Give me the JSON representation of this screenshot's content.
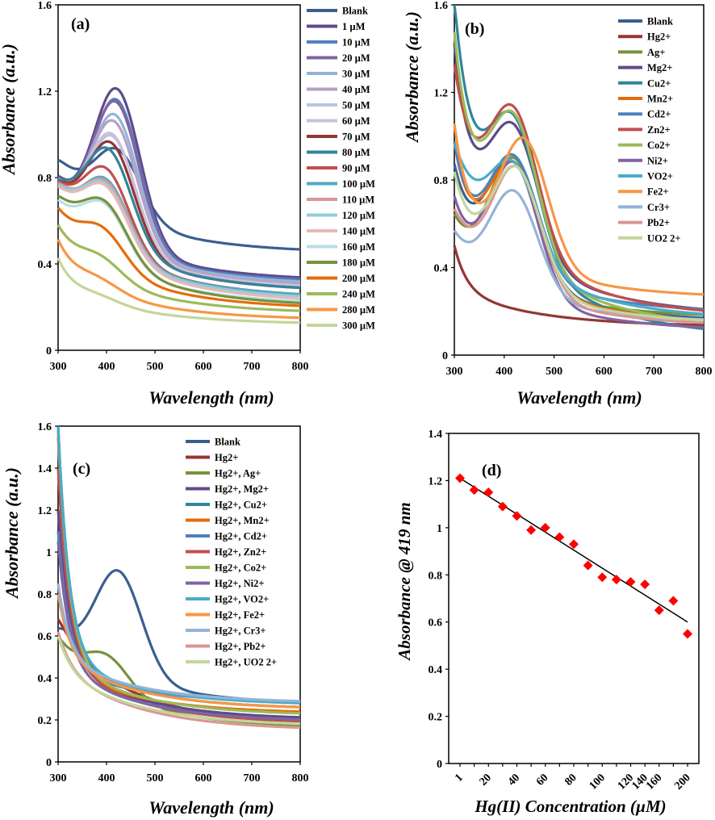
{
  "figure": "Four-panel absorbance figure",
  "palette": [
    "#3a5f8f",
    "#943634",
    "#76923c",
    "#5f4a8b",
    "#31859c",
    "#e46c0a",
    "#4f81bd",
    "#c0504d",
    "#9bbb59",
    "#8064a2",
    "#4bacc6",
    "#f79646",
    "#95b3d7",
    "#d99694",
    "#c3d69b",
    "#b3a2c7",
    "#93cddd",
    "#fabf8f",
    "#b7c7e0",
    "#e6b9b8",
    "#d7e4bd",
    "#ccc0da",
    "#b7dee8"
  ],
  "chart_data": [
    {
      "id": "a",
      "type": "line",
      "panel_label": "(a)",
      "xlabel": "Wavelength (nm)",
      "ylabel": "Absorbance (a.u.)",
      "xlim": [
        300,
        800
      ],
      "ylim": [
        0,
        1.6
      ],
      "xticks": [
        300,
        400,
        500,
        600,
        700,
        800
      ],
      "yticks": [
        0,
        0.4,
        0.8,
        1.2,
        1.6
      ],
      "ytick_labels": [
        "0",
        "0.4",
        "0.8",
        "1.2",
        "1.6"
      ],
      "series": [
        {
          "name": "Blank",
          "base": 0.87,
          "peak": 0.93,
          "dip": 0.84,
          "tail": 0.45,
          "center": 423
        },
        {
          "name": "1 µM",
          "base": 0.78,
          "peak": 1.21,
          "dip": 0.72,
          "tail": 0.32,
          "center": 422
        },
        {
          "name": "10 µM",
          "base": 0.77,
          "peak": 1.16,
          "dip": 0.71,
          "tail": 0.31,
          "center": 421
        },
        {
          "name": "20 µM",
          "base": 0.77,
          "peak": 1.15,
          "dip": 0.72,
          "tail": 0.3,
          "center": 420
        },
        {
          "name": "30 µM",
          "base": 0.76,
          "peak": 1.09,
          "dip": 0.72,
          "tail": 0.3,
          "center": 418
        },
        {
          "name": "40 µM",
          "base": 0.76,
          "peak": 1.06,
          "dip": 0.72,
          "tail": 0.29,
          "center": 416
        },
        {
          "name": "50 µM",
          "base": 0.75,
          "peak": 0.99,
          "dip": 0.71,
          "tail": 0.28,
          "center": 413
        },
        {
          "name": "60 µM",
          "base": 0.76,
          "peak": 1.0,
          "dip": 0.72,
          "tail": 0.28,
          "center": 412
        },
        {
          "name": "70 µM",
          "base": 0.75,
          "peak": 0.96,
          "dip": 0.71,
          "tail": 0.27,
          "center": 410
        },
        {
          "name": "80 µM",
          "base": 0.75,
          "peak": 0.93,
          "dip": 0.72,
          "tail": 0.27,
          "center": 405
        },
        {
          "name": "90 µM",
          "base": 0.74,
          "peak": 0.84,
          "dip": 0.69,
          "tail": 0.24,
          "center": 400
        },
        {
          "name": "100 µM",
          "base": 0.73,
          "peak": 0.79,
          "dip": 0.68,
          "tail": 0.24,
          "center": 400
        },
        {
          "name": "110 µM",
          "base": 0.74,
          "peak": 0.78,
          "dip": 0.69,
          "tail": 0.23,
          "center": 400
        },
        {
          "name": "120 µM",
          "base": 0.73,
          "peak": 0.77,
          "dip": 0.68,
          "tail": 0.23,
          "center": 398
        },
        {
          "name": "140 µM",
          "base": 0.72,
          "peak": 0.76,
          "dip": 0.67,
          "tail": 0.22,
          "center": 398
        },
        {
          "name": "160 µM",
          "base": 0.66,
          "peak": 0.68,
          "dip": 0.6,
          "tail": 0.21,
          "center": 395
        },
        {
          "name": "180 µM",
          "base": 0.68,
          "peak": 0.69,
          "dip": 0.63,
          "tail": 0.2,
          "center": 396
        },
        {
          "name": "200 µM",
          "base": 0.63,
          "peak": 0.57,
          "dip": 0.55,
          "tail": 0.19,
          "center": 390
        },
        {
          "name": "240 µM",
          "base": 0.56,
          "peak": 0.44,
          "dip": 0.46,
          "tail": 0.17,
          "center": 385
        },
        {
          "name": "280 µM",
          "base": 0.5,
          "peak": 0.34,
          "dip": 0.38,
          "tail": 0.14,
          "center": 380
        },
        {
          "name": "300 µM",
          "base": 0.42,
          "peak": 0.26,
          "dip": 0.3,
          "tail": 0.12,
          "center": 380
        }
      ]
    },
    {
      "id": "b",
      "type": "line",
      "panel_label": "(b)",
      "xlabel": "Wavelength (nm)",
      "ylabel": "Absorbance (a.u.)",
      "xlim": [
        300,
        800
      ],
      "ylim": [
        0,
        1.6
      ],
      "xticks": [
        300,
        400,
        500,
        600,
        700,
        800
      ],
      "yticks": [
        0,
        0.4,
        0.8,
        1.2,
        1.6
      ],
      "ytick_labels": [
        "0",
        "0.4",
        "0.8",
        "1.2",
        "1.6"
      ],
      "series": [
        {
          "name": "Blank",
          "base": 0.85,
          "peak": 0.91,
          "dip": 0.6,
          "tail": 0.15,
          "center": 420
        },
        {
          "name": "Hg2+",
          "base": 0.5,
          "peak": 0.0,
          "dip": 0.3,
          "tail": 0.13,
          "center": 400
        },
        {
          "name": "Ag+",
          "base": 0.62,
          "peak": 0.9,
          "dip": 0.5,
          "tail": 0.17,
          "center": 420
        },
        {
          "name": "Mg2+",
          "base": 1.4,
          "peak": 1.05,
          "dip": 0.86,
          "tail": 0.18,
          "center": 420
        },
        {
          "name": "Cu2+",
          "base": 1.6,
          "peak": 1.09,
          "dip": 0.99,
          "tail": 0.08,
          "center": 420
        },
        {
          "name": "Mn2+",
          "base": 0.95,
          "peak": 0.88,
          "dip": 0.62,
          "tail": 0.14,
          "center": 420
        },
        {
          "name": "Cd2+",
          "base": 0.95,
          "peak": 0.91,
          "dip": 0.63,
          "tail": 0.19,
          "center": 420
        },
        {
          "name": "Zn2+",
          "base": 1.3,
          "peak": 1.13,
          "dip": 0.93,
          "tail": 0.17,
          "center": 420
        },
        {
          "name": "Co2+",
          "base": 1.45,
          "peak": 1.1,
          "dip": 0.9,
          "tail": 0.12,
          "center": 420
        },
        {
          "name": "Ni2+",
          "base": 0.7,
          "peak": 0.88,
          "dip": 0.5,
          "tail": 0.11,
          "center": 420
        },
        {
          "name": "VO2+",
          "base": 0.95,
          "peak": 0.88,
          "dip": 0.79,
          "tail": 0.16,
          "center": 420
        },
        {
          "name": "Fe2+",
          "base": 1.05,
          "peak": 0.99,
          "dip": 0.65,
          "tail": 0.26,
          "center": 440
        },
        {
          "name": "Cr3+",
          "base": 0.55,
          "peak": 0.75,
          "dip": 0.45,
          "tail": 0.15,
          "center": 420
        },
        {
          "name": "Pb2+",
          "base": 0.65,
          "peak": 0.86,
          "dip": 0.53,
          "tail": 0.13,
          "center": 425
        },
        {
          "name": "UO2 2+",
          "base": 0.82,
          "peak": 0.86,
          "dip": 0.58,
          "tail": 0.14,
          "center": 425
        }
      ]
    },
    {
      "id": "c",
      "type": "line",
      "panel_label": "(c)",
      "xlabel": "Wavelength (nm)",
      "ylabel": "Absorbance (a.u.)",
      "xlim": [
        300,
        800
      ],
      "ylim": [
        0,
        1.6
      ],
      "xticks": [
        300,
        400,
        500,
        600,
        700,
        800
      ],
      "yticks": [
        0,
        0.2,
        0.4,
        0.6,
        0.8,
        1,
        1.2,
        1.4,
        1.6
      ],
      "ytick_labels": [
        "0",
        "0.2",
        "0.4",
        "0.6",
        "0.8",
        "1",
        "1.2",
        "1.4",
        "1.6"
      ],
      "series": [
        {
          "name": "Blank",
          "base": 0.62,
          "peak": 0.91,
          "dip": 0.6,
          "tail": 0.27,
          "center": 425
        },
        {
          "name": "Hg2+",
          "base": 0.68,
          "peak": 0.0,
          "dip": 0.6,
          "tail": 0.17,
          "center": 400
        },
        {
          "name": "Hg2+, Ag+",
          "base": 0.58,
          "peak": 0.51,
          "dip": 0.49,
          "tail": 0.16,
          "center": 400
        },
        {
          "name": "Hg2+, Mg2+",
          "base": 1.2,
          "peak": 0.0,
          "dip": 0.48,
          "tail": 0.2,
          "center": 400
        },
        {
          "name": "Hg2+, Cu2+",
          "base": 1.6,
          "peak": 0.0,
          "dip": 0.5,
          "tail": 0.25,
          "center": 400
        },
        {
          "name": "Hg2+, Mn2+",
          "base": 1.55,
          "peak": 0.0,
          "dip": 0.45,
          "tail": 0.23,
          "center": 400
        },
        {
          "name": "Hg2+, Cd2+",
          "base": 1.1,
          "peak": 0.0,
          "dip": 0.45,
          "tail": 0.28,
          "center": 400
        },
        {
          "name": "Hg2+, Zn2+",
          "base": 1.4,
          "peak": 0.0,
          "dip": 0.48,
          "tail": 0.18,
          "center": 400
        },
        {
          "name": "Hg2+, Co2+",
          "base": 1.58,
          "peak": 0.0,
          "dip": 0.48,
          "tail": 0.22,
          "center": 400
        },
        {
          "name": "Hg2+, Ni2+",
          "base": 1.05,
          "peak": 0.0,
          "dip": 0.46,
          "tail": 0.19,
          "center": 400
        },
        {
          "name": "Hg2+, VO2+",
          "base": 1.6,
          "peak": 0.0,
          "dip": 0.5,
          "tail": 0.27,
          "center": 400
        },
        {
          "name": "Hg2+, Fe2+",
          "base": 0.8,
          "peak": 0.0,
          "dip": 0.5,
          "tail": 0.25,
          "center": 400
        },
        {
          "name": "Hg2+, Cr3+",
          "base": 0.85,
          "peak": 0.0,
          "dip": 0.5,
          "tail": 0.28,
          "center": 400
        },
        {
          "name": "Hg2+, Pb2+",
          "base": 0.62,
          "peak": 0.0,
          "dip": 0.45,
          "tail": 0.15,
          "center": 400
        },
        {
          "name": "Hg2+, UO2 2+",
          "base": 0.6,
          "peak": 0.0,
          "dip": 0.44,
          "tail": 0.17,
          "center": 400
        }
      ]
    },
    {
      "id": "d",
      "type": "scatter",
      "panel_label": "(d)",
      "xlabel": "Hg(II) Concentration (µM)",
      "ylabel": "Absorbance @ 419 nm",
      "ylim": [
        0,
        1.4
      ],
      "yticks": [
        0,
        0.2,
        0.4,
        0.6,
        0.8,
        1,
        1.2,
        1.4
      ],
      "ytick_labels": [
        "0",
        "0.2",
        "0.4",
        "0.6",
        "0.8",
        "1",
        "1.2",
        "1.4"
      ],
      "categories": [
        "1",
        "10",
        "20",
        "30",
        "40",
        "50",
        "60",
        "70",
        "80",
        "90",
        "100",
        "110",
        "120",
        "140",
        "160",
        "180",
        "200"
      ],
      "xtick_labels": [
        "1",
        "",
        "20",
        "",
        "40",
        "",
        "60",
        "",
        "80",
        "",
        "100",
        "",
        "120",
        "140",
        "160",
        "",
        "200"
      ],
      "values": [
        1.21,
        1.16,
        1.15,
        1.09,
        1.05,
        0.99,
        1.0,
        0.96,
        0.93,
        0.84,
        0.79,
        0.78,
        0.77,
        0.76,
        0.65,
        0.69,
        0.55
      ],
      "trend": {
        "start": 1.21,
        "end": 0.6
      },
      "marker_color": "#ff0000"
    }
  ]
}
